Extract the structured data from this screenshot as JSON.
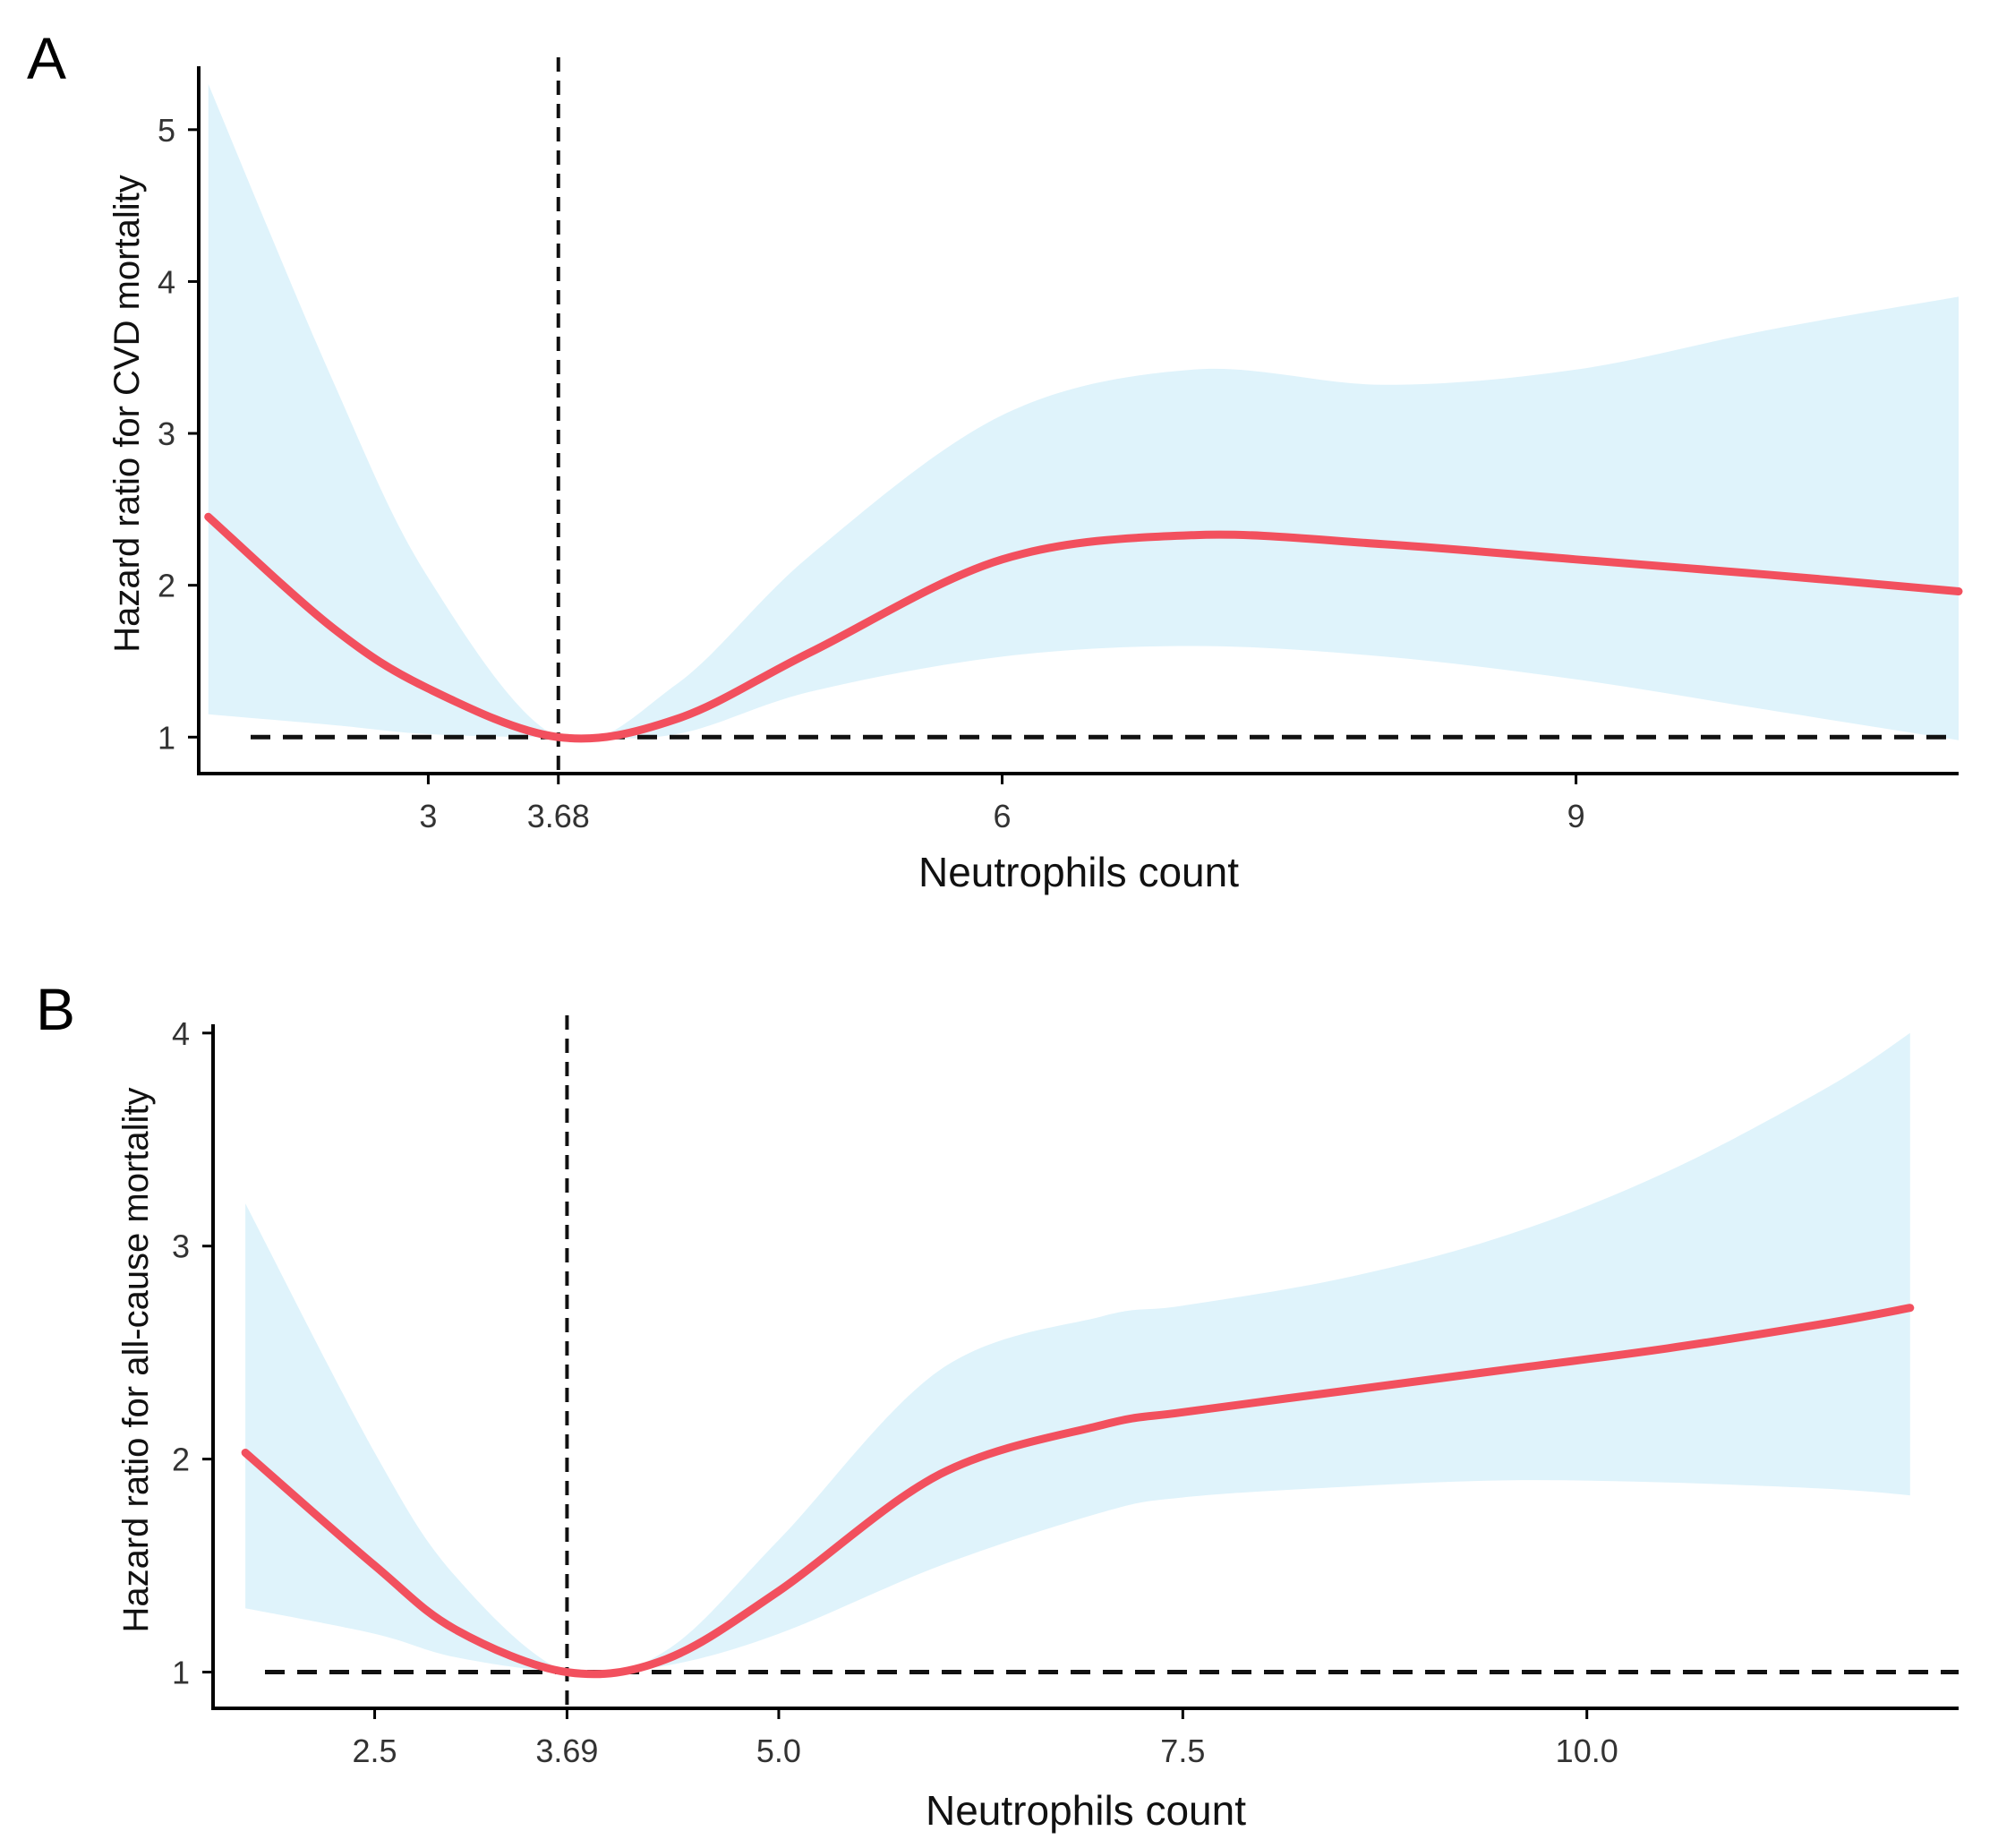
{
  "chart_data": [
    {
      "type": "line",
      "panel_label": "A",
      "xlabel": "Neutrophils count",
      "ylabel": "Hazard ratio for CVD mortality",
      "xlim": [
        1.8,
        11.0
      ],
      "ylim": [
        0.76,
        5.5
      ],
      "x_ticks": [
        3,
        6,
        9
      ],
      "x_tick_labels": [
        "3",
        "6",
        "9"
      ],
      "y_ticks": [
        1,
        2,
        3,
        4,
        5
      ],
      "y_tick_labels": [
        "1",
        "2",
        "3",
        "4",
        "5"
      ],
      "reference_x": 3.68,
      "reference_x_label": "3.68",
      "reference_y": 1,
      "colors": {
        "line": "#f2505e",
        "band": "#dff3fb",
        "reference": "#111111"
      },
      "series": [
        {
          "name": "Hazard ratio",
          "x": [
            1.85,
            2.5,
            3.0,
            3.68,
            4.3,
            5.0,
            6.0,
            7.0,
            8.0,
            9.0,
            10.0,
            11.0
          ],
          "y": [
            2.45,
            1.72,
            1.32,
            1.0,
            1.12,
            1.56,
            2.17,
            2.33,
            2.27,
            2.17,
            2.07,
            1.96
          ],
          "lower": [
            1.15,
            1.08,
            1.02,
            1.0,
            1.02,
            1.3,
            1.53,
            1.6,
            1.53,
            1.38,
            1.18,
            0.98
          ],
          "upper": [
            5.3,
            3.35,
            2.05,
            1.0,
            1.35,
            2.2,
            3.12,
            3.42,
            3.32,
            3.42,
            3.68,
            3.9
          ]
        }
      ]
    },
    {
      "type": "line",
      "panel_label": "B",
      "xlabel": "Neutrophils count",
      "ylabel": "Hazard ratio for all-cause mortality",
      "xlim": [
        1.5,
        12.3
      ],
      "ylim": [
        0.83,
        4.1
      ],
      "x_ticks": [
        2.5,
        5.0,
        7.5,
        10.0
      ],
      "x_tick_labels": [
        "2.5",
        "5.0",
        "7.5",
        "10.0"
      ],
      "y_ticks": [
        1,
        2,
        3,
        4
      ],
      "y_tick_labels": [
        "1",
        "2",
        "3",
        "4"
      ],
      "reference_x": 3.69,
      "reference_x_label": "3.69",
      "reference_y": 1,
      "colors": {
        "line": "#f2505e",
        "band": "#dff3fb",
        "reference": "#111111"
      },
      "series": [
        {
          "name": "Hazard ratio",
          "x": [
            1.7,
            2.5,
            3.0,
            3.69,
            4.3,
            5.0,
            6.0,
            7.0,
            7.5,
            8.5,
            9.5,
            10.5,
            11.5,
            12.0
          ],
          "y": [
            2.03,
            1.5,
            1.2,
            1.0,
            1.06,
            1.38,
            1.93,
            2.16,
            2.22,
            2.32,
            2.42,
            2.52,
            2.64,
            2.71
          ],
          "lower": [
            1.3,
            1.18,
            1.07,
            1.0,
            1.03,
            1.18,
            1.5,
            1.75,
            1.82,
            1.87,
            1.9,
            1.89,
            1.86,
            1.83
          ],
          "upper": [
            3.2,
            2.03,
            1.45,
            1.0,
            1.1,
            1.62,
            2.42,
            2.67,
            2.72,
            2.85,
            3.05,
            3.35,
            3.75,
            4.0
          ]
        }
      ]
    }
  ]
}
